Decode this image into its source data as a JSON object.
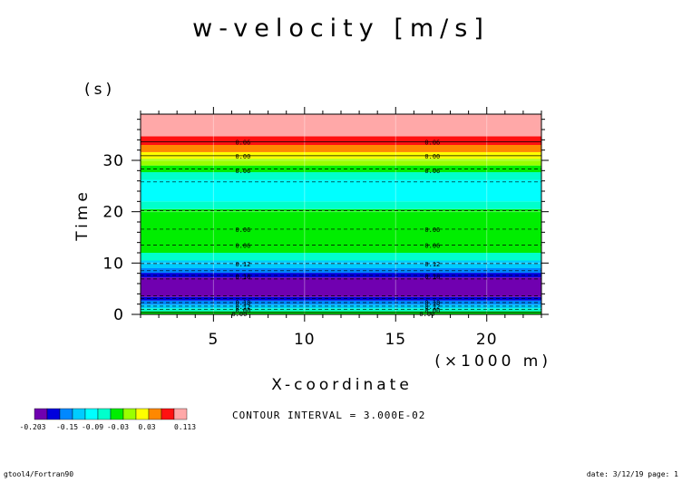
{
  "chart_data": {
    "type": "heatmap",
    "title": "w-velocity [m/s]",
    "xlabel": "X-coordinate",
    "xunit": "(×1000 m)",
    "ylabel": "Time",
    "yunit": "(s)",
    "xlim": [
      1,
      23
    ],
    "ylim": [
      0,
      39
    ],
    "xticks": [
      5,
      10,
      15,
      20
    ],
    "yticks": [
      0,
      10,
      20,
      30
    ],
    "bands": [
      {
        "y0": 0.0,
        "y1": 0.6,
        "color": "#00ee00"
      },
      {
        "y0": 0.6,
        "y1": 1.2,
        "color": "#00ffcc"
      },
      {
        "y0": 1.2,
        "y1": 1.9,
        "color": "#00ccff"
      },
      {
        "y0": 1.9,
        "y1": 2.7,
        "color": "#0088ff"
      },
      {
        "y0": 2.7,
        "y1": 3.4,
        "color": "#0000dd"
      },
      {
        "y0": 3.4,
        "y1": 7.2,
        "color": "#7000b0"
      },
      {
        "y0": 7.2,
        "y1": 8.1,
        "color": "#0000dd"
      },
      {
        "y0": 8.1,
        "y1": 9.0,
        "color": "#0088ff"
      },
      {
        "y0": 9.0,
        "y1": 10.5,
        "color": "#00ccff"
      },
      {
        "y0": 10.5,
        "y1": 12.0,
        "color": "#00ffcc"
      },
      {
        "y0": 12.0,
        "y1": 20.5,
        "color": "#00ee00"
      },
      {
        "y0": 20.5,
        "y1": 22.0,
        "color": "#00ffcc"
      },
      {
        "y0": 22.0,
        "y1": 26.2,
        "color": "#00ffff"
      },
      {
        "y0": 26.2,
        "y1": 27.7,
        "color": "#00ffcc"
      },
      {
        "y0": 27.7,
        "y1": 29.0,
        "color": "#00ee00"
      },
      {
        "y0": 29.0,
        "y1": 30.3,
        "color": "#9aff00"
      },
      {
        "y0": 30.3,
        "y1": 31.6,
        "color": "#ffff00"
      },
      {
        "y0": 31.6,
        "y1": 33.0,
        "color": "#ff8800"
      },
      {
        "y0": 33.0,
        "y1": 34.7,
        "color": "#ff1111"
      },
      {
        "y0": 34.7,
        "y1": 39.0,
        "color": "#ffa8a8"
      }
    ],
    "contours": [
      {
        "y": 0.4,
        "dashed": false
      },
      {
        "y": 1.0,
        "dashed": true
      },
      {
        "y": 1.6,
        "dashed": true
      },
      {
        "y": 2.3,
        "dashed": true
      },
      {
        "y": 3.1,
        "dashed": true
      },
      {
        "y": 3.6,
        "dashed": true
      },
      {
        "y": 6.9,
        "dashed": true
      },
      {
        "y": 7.6,
        "dashed": true
      },
      {
        "y": 8.5,
        "dashed": true
      },
      {
        "y": 9.9,
        "dashed": true
      },
      {
        "y": 13.5,
        "dashed": true
      },
      {
        "y": 16.6,
        "dashed": true
      },
      {
        "y": 20.2,
        "dashed": true
      },
      {
        "y": 25.8,
        "dashed": true
      },
      {
        "y": 28.3,
        "dashed": true
      },
      {
        "y": 30.9,
        "dashed": false
      },
      {
        "y": 33.6,
        "dashed": false
      }
    ],
    "contour_labels": [
      {
        "x": 6.0,
        "y": 0.0,
        "text": "0.00"
      },
      {
        "x": 6.2,
        "y": 0.7,
        "text": "0.06"
      },
      {
        "x": 6.2,
        "y": 1.4,
        "text": "0.12"
      },
      {
        "x": 6.2,
        "y": 2.2,
        "text": "0.18"
      },
      {
        "x": 6.2,
        "y": 7.3,
        "text": "0.18"
      },
      {
        "x": 6.2,
        "y": 9.7,
        "text": "0.12"
      },
      {
        "x": 6.2,
        "y": 13.3,
        "text": "0.06"
      },
      {
        "x": 6.2,
        "y": 16.4,
        "text": "0.06"
      },
      {
        "x": 6.2,
        "y": 27.9,
        "text": "0.06"
      },
      {
        "x": 6.2,
        "y": 30.7,
        "text": "0.00"
      },
      {
        "x": 6.2,
        "y": 33.4,
        "text": "0.06"
      },
      {
        "x": 16.3,
        "y": 0.0,
        "text": "0.00"
      },
      {
        "x": 16.6,
        "y": 0.7,
        "text": "0.06"
      },
      {
        "x": 16.6,
        "y": 1.4,
        "text": "0.12"
      },
      {
        "x": 16.6,
        "y": 2.2,
        "text": "0.18"
      },
      {
        "x": 16.6,
        "y": 7.3,
        "text": "0.18"
      },
      {
        "x": 16.6,
        "y": 9.7,
        "text": "0.12"
      },
      {
        "x": 16.6,
        "y": 13.3,
        "text": "0.06"
      },
      {
        "x": 16.6,
        "y": 16.4,
        "text": "0.06"
      },
      {
        "x": 16.6,
        "y": 27.9,
        "text": "0.06"
      },
      {
        "x": 16.6,
        "y": 30.7,
        "text": "0.00"
      },
      {
        "x": 16.6,
        "y": 33.4,
        "text": "0.06"
      }
    ],
    "legend": {
      "colors": [
        "#7000b0",
        "#0000dd",
        "#0088ff",
        "#00ccff",
        "#00ffff",
        "#00ffcc",
        "#00ee00",
        "#9aff00",
        "#ffff00",
        "#ff8800",
        "#ff1111",
        "#ffa8a8"
      ],
      "labels": [
        "-0.203",
        "-0.15",
        "-0.09",
        "-0.03",
        "0.03",
        "0.113"
      ],
      "contour_interval": "CONTOUR INTERVAL = 3.000E-02"
    }
  },
  "footer": {
    "left": "gtool4/Fortran90",
    "right": "date: 3/12/19 page: 1"
  }
}
